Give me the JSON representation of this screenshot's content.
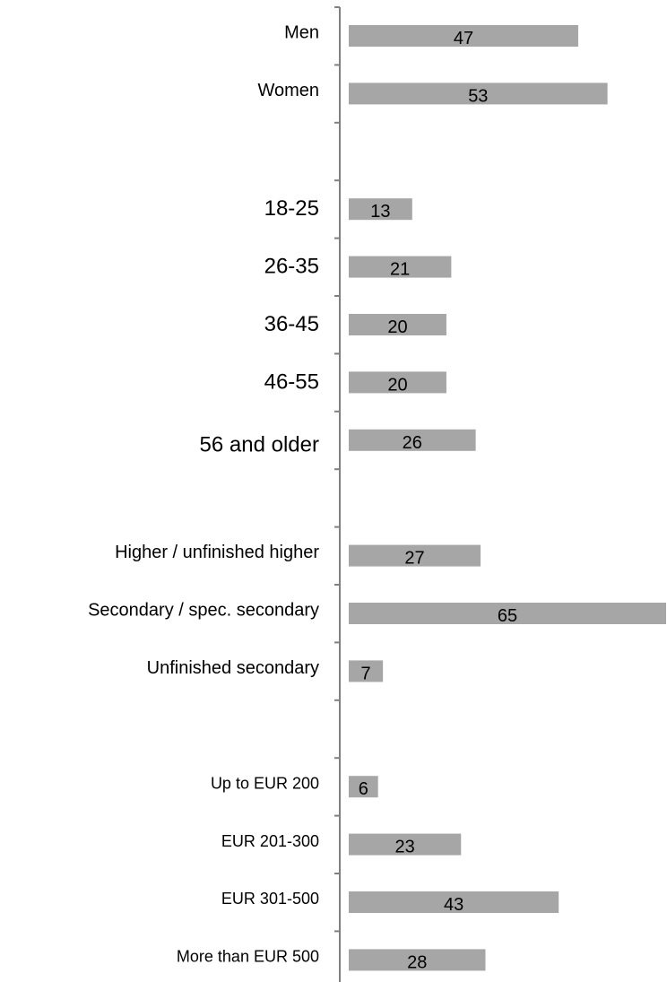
{
  "chart_data": {
    "type": "bar",
    "orientation": "horizontal",
    "title": "",
    "xlabel": "",
    "ylabel": "",
    "xlim": [
      0,
      65
    ],
    "grid": false,
    "legend": "none",
    "bar_color": "#a6a6a6",
    "axis_color": "#808080",
    "groups": [
      {
        "categories": [
          "Men",
          "Women"
        ],
        "values": [
          47,
          53
        ]
      },
      {
        "categories": [
          "18-25",
          "26-35",
          "36-45",
          "46-55",
          "56 and older"
        ],
        "values": [
          13,
          21,
          20,
          20,
          26
        ]
      },
      {
        "categories": [
          "Higher / unfinished higher",
          "Secondary / spec. secondary",
          "Unfinished secondary"
        ],
        "values": [
          27,
          65,
          7
        ]
      },
      {
        "categories": [
          "Up to EUR 200",
          "EUR 201-300",
          "EUR 301-500",
          "More than EUR 500"
        ],
        "values": [
          6,
          23,
          43,
          28
        ]
      }
    ]
  }
}
